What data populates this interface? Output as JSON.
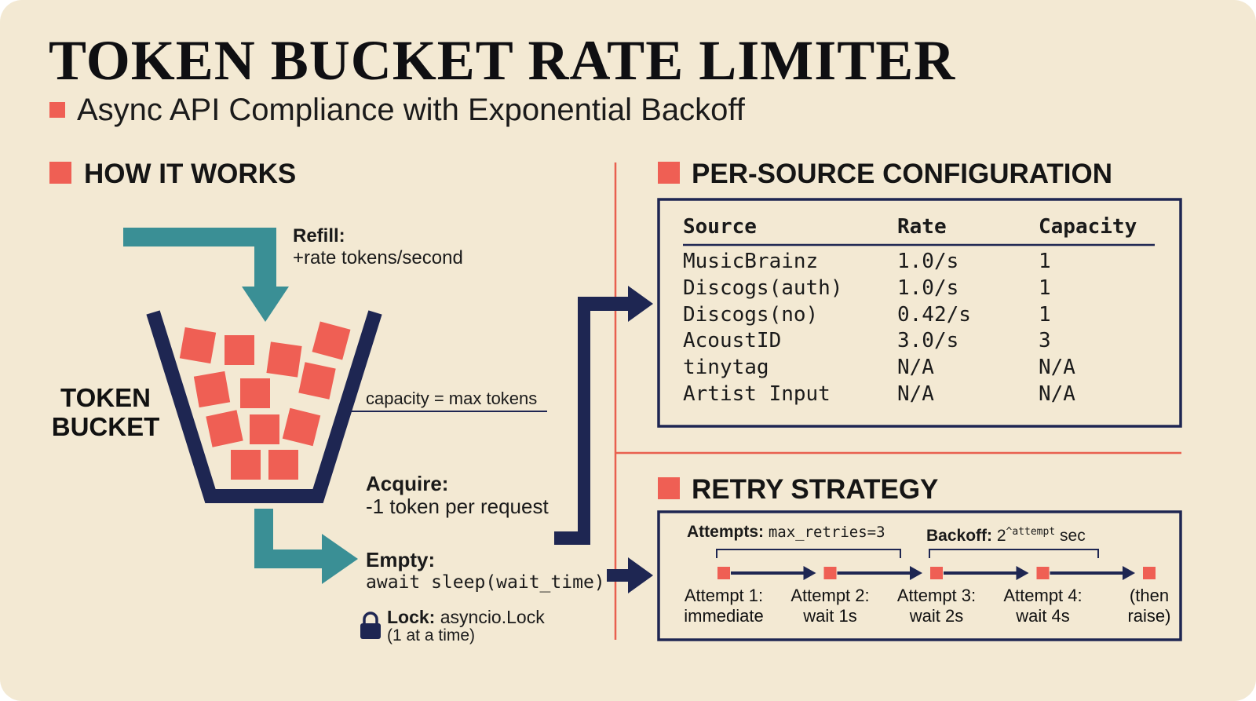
{
  "header": {
    "title": "TOKEN BUCKET RATE LIMITER",
    "subtitle": "Async API Compliance with Exponential Backoff"
  },
  "how_it_works": {
    "heading": "HOW IT WORKS",
    "bucket_label": [
      "TOKEN",
      "BUCKET"
    ],
    "refill": {
      "label": "Refill:",
      "text": "+rate tokens/second"
    },
    "capacity": "capacity = max tokens",
    "acquire": {
      "label": "Acquire:",
      "text": "-1 token per request"
    },
    "empty": {
      "label": "Empty:",
      "text": "await sleep(wait_time)"
    },
    "lock": {
      "label": "Lock:",
      "text": "asyncio.Lock",
      "note": "(1 at a time)"
    }
  },
  "config": {
    "heading": "PER-SOURCE CONFIGURATION",
    "table": {
      "columns": [
        "Source",
        "Rate",
        "Capacity"
      ],
      "rows": [
        [
          "MusicBrainz",
          "1.0/s",
          "1"
        ],
        [
          "Discogs(auth)",
          "1.0/s",
          "1"
        ],
        [
          "Discogs(no)",
          "0.42/s",
          "1"
        ],
        [
          "AcoustID",
          "3.0/s",
          "3"
        ],
        [
          "tinytag",
          "N/A",
          "N/A"
        ],
        [
          "Artist Input",
          "N/A",
          "N/A"
        ]
      ]
    }
  },
  "retry": {
    "heading": "RETRY STRATEGY",
    "attempts": {
      "label": "Attempts:",
      "text": "max_retries=3"
    },
    "backoff": {
      "label": "Backoff:",
      "base": "2",
      "exponent": "^attempt",
      "unit": "sec"
    },
    "steps": [
      {
        "title": "Attempt 1:",
        "detail": "immediate"
      },
      {
        "title": "Attempt 2:",
        "detail": "wait 1s"
      },
      {
        "title": "Attempt 3:",
        "detail": "wait 2s"
      },
      {
        "title": "Attempt 4:",
        "detail": "wait 4s"
      },
      {
        "title": "(then",
        "detail": "raise)"
      }
    ]
  }
}
